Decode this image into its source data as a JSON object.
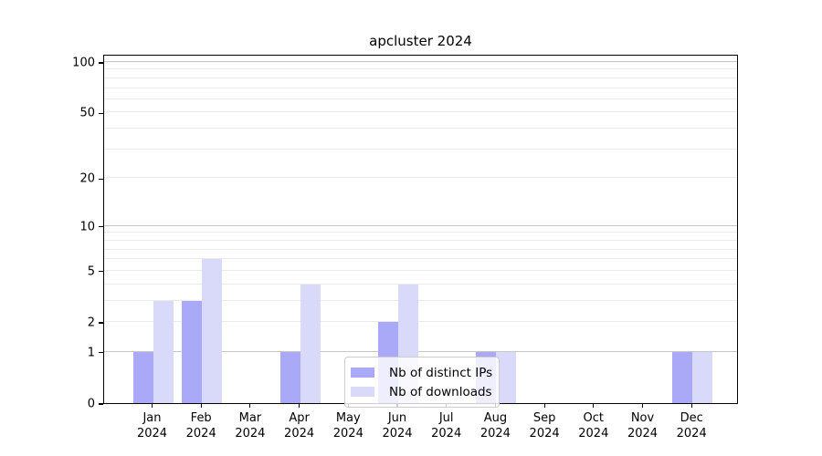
{
  "title": "apcluster 2024",
  "year": "2024",
  "legend": {
    "items": [
      {
        "label": "Nb of distinct IPs",
        "color": "#a9a9f7"
      },
      {
        "label": "Nb of downloads",
        "color": "#d9d9f9"
      }
    ]
  },
  "chart_data": {
    "type": "bar",
    "title": "apcluster 2024",
    "categories": [
      "Jan 2024",
      "Feb 2024",
      "Mar 2024",
      "Apr 2024",
      "May 2024",
      "Jun 2024",
      "Jul 2024",
      "Aug 2024",
      "Sep 2024",
      "Oct 2024",
      "Nov 2024",
      "Dec 2024"
    ],
    "months": [
      "Jan",
      "Feb",
      "Mar",
      "Apr",
      "May",
      "Jun",
      "Jul",
      "Aug",
      "Sep",
      "Oct",
      "Nov",
      "Dec"
    ],
    "series": [
      {
        "name": "Nb of distinct IPs",
        "color": "#a9a9f7",
        "values": [
          1,
          3,
          0,
          1,
          0,
          2,
          0,
          1,
          0,
          0,
          0,
          1
        ]
      },
      {
        "name": "Nb of downloads",
        "color": "#d9d9f9",
        "values": [
          3,
          6,
          0,
          4,
          0,
          4,
          0,
          1,
          0,
          0,
          0,
          1
        ]
      }
    ],
    "yscale": "log1p",
    "ylim": [
      0,
      110
    ],
    "y_axis_ticks": [
      0,
      1,
      2,
      5,
      10,
      20,
      50,
      100
    ],
    "y_major_gridlines": [
      1,
      10,
      100
    ],
    "y_minor_gridlines": [
      2,
      3,
      4,
      5,
      6,
      7,
      8,
      9,
      20,
      30,
      40,
      50,
      60,
      70,
      80,
      90
    ],
    "grid": true,
    "legend_position": "inside-bottom-center",
    "colors": {
      "major_grid": "#c6c6c6",
      "minor_grid": "#eaeaea",
      "axis": "#000000",
      "background": "#ffffff"
    }
  }
}
